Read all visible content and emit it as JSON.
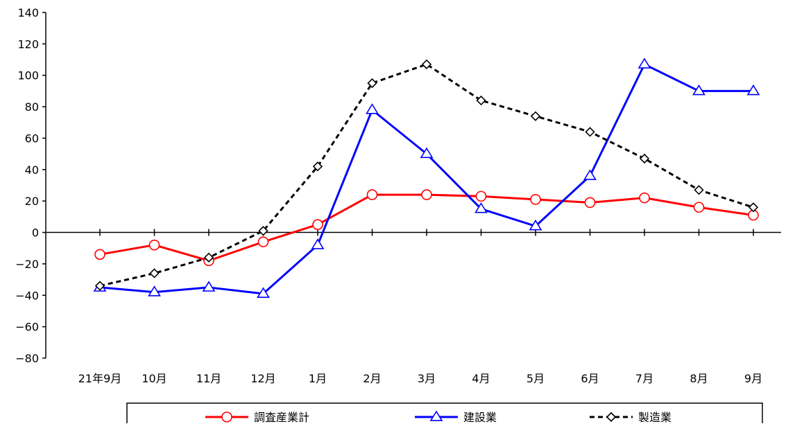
{
  "chart_data": {
    "type": "line",
    "categories": [
      "21年9月",
      "10月",
      "11月",
      "12月",
      "1月",
      "2月",
      "3月",
      "4月",
      "5月",
      "6月",
      "7月",
      "8月",
      "9月"
    ],
    "ylim": [
      -80,
      140
    ],
    "yticks": [
      -80,
      -60,
      -40,
      -20,
      0,
      20,
      40,
      60,
      80,
      100,
      120,
      140
    ],
    "grid": false,
    "legend": "bottom",
    "series": [
      {
        "name": "調査産業計",
        "color": "#ff0000",
        "marker": "circle",
        "dash": "solid",
        "values": [
          -14,
          -8,
          -18,
          -6,
          5,
          24,
          24,
          23,
          21,
          19,
          22,
          16,
          11
        ]
      },
      {
        "name": "建設業",
        "color": "#0000ff",
        "marker": "triangle",
        "dash": "solid",
        "values": [
          -35,
          -38,
          -35,
          -39,
          -8,
          78,
          50,
          15,
          4,
          36,
          107,
          90,
          90
        ]
      },
      {
        "name": "製造業",
        "color": "#000000",
        "marker": "diamond",
        "dash": "dashed",
        "values": [
          -34,
          -26,
          -16,
          1,
          42,
          95,
          107,
          84,
          74,
          64,
          47,
          27,
          16
        ]
      }
    ]
  }
}
